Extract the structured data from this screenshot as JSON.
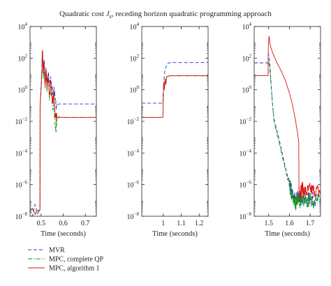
{
  "chart_data": {
    "type": "line",
    "title": "Quadratic cost J_s, receding horizon quadratic programming approach",
    "title_parts": {
      "before": "Quadratic cost ",
      "symbol": "J",
      "subscript": "s",
      "after": ", receding horizon quadratic programming approach"
    },
    "yscale": "log",
    "ylim": [
      1e-08,
      10000.0
    ],
    "ytick_base": "10",
    "ytick_exponents": [
      "4",
      "2",
      "0",
      "−2",
      "−4",
      "−6",
      "−8"
    ],
    "ytick_values": [
      4,
      2,
      0,
      -2,
      -4,
      -6,
      -8
    ],
    "legend": {
      "placement": "bottom-left",
      "entries": [
        {
          "label": "MVR",
          "color": "#2233cc",
          "style": "dashed"
        },
        {
          "label": "MPC, complete QP",
          "color": "#119911",
          "style": "dashdot"
        },
        {
          "label": "MPC, algorithm 1",
          "color": "#dd1111",
          "style": "solid"
        }
      ]
    },
    "panels": [
      {
        "xlabel": "Time (seconds)",
        "xlim": [
          0.45,
          0.75
        ],
        "xticks": [
          0.5,
          0.6,
          0.7
        ],
        "xtick_labels": [
          "0.5",
          "0.6",
          "0.7"
        ],
        "series": [
          {
            "name": "MVR",
            "x": [
              0.45,
              0.495,
              0.4955,
              0.502,
              0.506,
              0.51,
              0.514,
              0.518,
              0.522,
              0.527,
              0.532,
              0.538,
              0.545,
              0.552,
              0.558,
              0.563,
              0.567,
              0.572,
              0.58,
              0.6,
              0.7,
              0.75
            ],
            "log10_y": [
              -7.6,
              -7.6,
              -1.0,
              0.8,
              2.4,
              1.1,
              1.9,
              0.6,
              1.4,
              0.3,
              1.0,
              0.2,
              0.6,
              -0.3,
              0.2,
              -0.6,
              -0.9,
              -0.95,
              -0.9,
              -0.9,
              -0.9,
              -0.9
            ]
          },
          {
            "name": "MPC, complete QP",
            "x": [
              0.45,
              0.495,
              0.4955,
              0.502,
              0.506,
              0.51,
              0.514,
              0.518,
              0.522,
              0.527,
              0.532,
              0.538,
              0.545,
              0.552,
              0.558,
              0.563,
              0.567,
              0.572,
              0.58,
              0.6,
              0.7,
              0.75
            ],
            "log10_y": [
              -7.6,
              -7.6,
              -1.2,
              0.5,
              2.0,
              0.7,
              1.6,
              0.1,
              1.1,
              -0.2,
              0.8,
              -0.7,
              0.2,
              -1.2,
              -1.0,
              -2.0,
              -2.5,
              -1.9,
              -1.7,
              -1.75,
              -1.75,
              -1.75
            ]
          },
          {
            "name": "MPC, algorithm 1",
            "x": [
              0.45,
              0.495,
              0.4955,
              0.502,
              0.506,
              0.51,
              0.514,
              0.518,
              0.522,
              0.527,
              0.532,
              0.538,
              0.545,
              0.552,
              0.558,
              0.563,
              0.567,
              0.572,
              0.58,
              0.6,
              0.7,
              0.75
            ],
            "log10_y": [
              -7.6,
              -7.6,
              -1.1,
              0.6,
              2.5,
              1.0,
              1.8,
              0.4,
              1.3,
              0.2,
              0.9,
              -0.3,
              0.5,
              -0.8,
              -0.4,
              -1.4,
              -1.6,
              -1.75,
              -1.75,
              -1.75,
              -1.75,
              -1.75
            ]
          }
        ]
      },
      {
        "xlabel": "Time (seconds)",
        "xlim": [
          0.88,
          1.25
        ],
        "xticks": [
          1.0,
          1.1,
          1.2
        ],
        "xtick_labels": [
          "1",
          "1.1",
          "1.2"
        ],
        "series": [
          {
            "name": "MVR",
            "x": [
              0.88,
              0.998,
              0.999,
              1.005,
              1.01,
              1.015,
              1.02,
              1.03,
              1.05,
              1.1,
              1.2,
              1.25
            ],
            "log10_y": [
              -0.85,
              -0.85,
              -0.3,
              0.8,
              1.3,
              1.4,
              1.6,
              1.7,
              1.72,
              1.72,
              1.72,
              1.72
            ]
          },
          {
            "name": "MPC, complete QP",
            "x": [
              0.88,
              0.998,
              0.999,
              1.003,
              1.007,
              1.011,
              1.015,
              1.02,
              1.03,
              1.05,
              1.1,
              1.2,
              1.25
            ],
            "log10_y": [
              -1.75,
              -1.75,
              -1.0,
              0.5,
              0.2,
              0.6,
              0.4,
              0.85,
              0.88,
              0.9,
              0.9,
              0.9,
              0.9
            ]
          },
          {
            "name": "MPC, algorithm 1",
            "x": [
              0.88,
              0.998,
              0.999,
              1.002,
              1.006,
              1.01,
              1.014,
              1.018,
              1.025,
              1.04,
              1.1,
              1.2,
              1.25
            ],
            "log10_y": [
              -1.75,
              -1.75,
              -0.9,
              0.4,
              0.0,
              0.7,
              0.3,
              0.8,
              0.85,
              0.88,
              0.88,
              0.88,
              0.88
            ]
          }
        ]
      },
      {
        "xlabel": "Time (seconds)",
        "xlim": [
          1.43,
          1.75
        ],
        "xticks": [
          1.5,
          1.6,
          1.7
        ],
        "xtick_labels": [
          "1.5",
          "1.6",
          "1.7"
        ],
        "series": [
          {
            "name": "MVR",
            "x": [
              1.43,
              1.497,
              1.498,
              1.503,
              1.508,
              1.512,
              1.518,
              1.524,
              1.53,
              1.54,
              1.55,
              1.56,
              1.57,
              1.58,
              1.59,
              1.6,
              1.61,
              1.62,
              1.63,
              1.64,
              1.65,
              1.66,
              1.68,
              1.7,
              1.72,
              1.75
            ],
            "log10_y": [
              1.7,
              1.7,
              2.3,
              2.0,
              1.2,
              0.3,
              -0.8,
              -1.7,
              -2.1,
              -2.6,
              -3.1,
              -3.7,
              -4.3,
              -4.9,
              -5.4,
              -5.9,
              -6.4,
              -6.9,
              -7.0,
              -6.6,
              -7.0,
              -6.7,
              -7.1,
              -6.8,
              -7.0,
              -6.9
            ]
          },
          {
            "name": "MPC, complete QP",
            "x": [
              1.43,
              1.497,
              1.498,
              1.503,
              1.508,
              1.513,
              1.518,
              1.524,
              1.53,
              1.54,
              1.55,
              1.56,
              1.57,
              1.58,
              1.59,
              1.6,
              1.61,
              1.62,
              1.63,
              1.64,
              1.65,
              1.66,
              1.68,
              1.7,
              1.72,
              1.75
            ],
            "log10_y": [
              0.9,
              0.9,
              1.9,
              1.5,
              0.8,
              0.0,
              -0.9,
              -1.8,
              -2.3,
              -2.8,
              -3.3,
              -3.9,
              -4.5,
              -5.0,
              -5.6,
              -6.1,
              -6.7,
              -7.0,
              -7.2,
              -6.8,
              -7.1,
              -6.9,
              -7.2,
              -6.9,
              -7.1,
              -7.0
            ]
          },
          {
            "name": "MPC, algorithm 1",
            "x": [
              1.43,
              1.497,
              1.498,
              1.502,
              1.505,
              1.51,
              1.52,
              1.53,
              1.54,
              1.56,
              1.58,
              1.6,
              1.61,
              1.62,
              1.63,
              1.64,
              1.645,
              1.646,
              1.65,
              1.66,
              1.68,
              1.7,
              1.72,
              1.75
            ],
            "log10_y": [
              0.9,
              0.9,
              2.8,
              3.4,
              3.0,
              2.7,
              2.3,
              2.0,
              1.7,
              1.2,
              0.6,
              -0.2,
              -0.7,
              -1.3,
              -2.0,
              -2.8,
              -3.3,
              -6.3,
              -6.6,
              -6.2,
              -6.5,
              -6.3,
              -6.4,
              -6.4
            ]
          }
        ]
      }
    ]
  }
}
